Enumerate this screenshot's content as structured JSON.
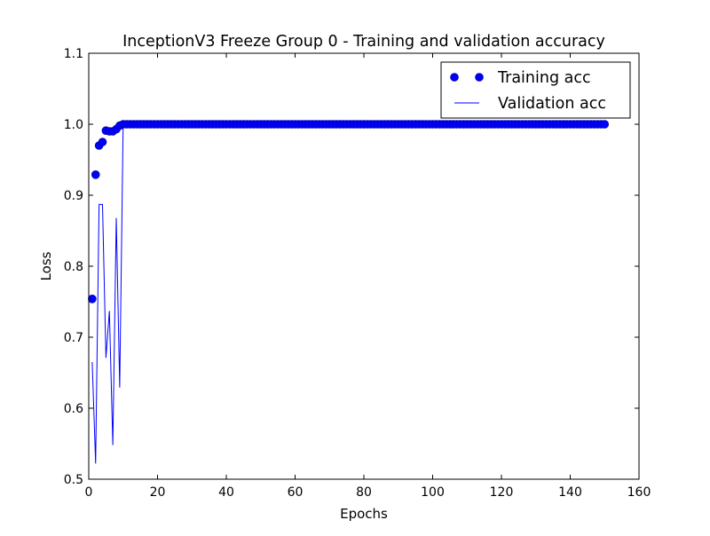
{
  "chart_data": {
    "type": "line",
    "title": "InceptionV3 Freeze Group 0 - Training and validation accuracy",
    "xlabel": "Epochs",
    "ylabel": "Loss",
    "xlim": [
      0,
      160
    ],
    "ylim": [
      0.5,
      1.1
    ],
    "xticks": [
      "0",
      "20",
      "40",
      "60",
      "80",
      "100",
      "120",
      "140",
      "160"
    ],
    "yticks": [
      "0.5",
      "0.6",
      "0.7",
      "0.8",
      "0.9",
      "1.0",
      "1.1"
    ],
    "grid": false,
    "legend_position": "top-right",
    "colors": {
      "series": "#0000ff",
      "marker": "#0000bf",
      "axis": "#000000"
    },
    "series": [
      {
        "name": "Training acc",
        "style": "markers",
        "x": [
          1,
          2,
          3,
          4,
          5,
          6,
          7,
          8,
          9,
          10,
          11,
          12,
          13,
          14,
          15,
          16,
          17,
          18,
          19,
          20,
          21,
          22,
          23,
          24,
          25,
          26,
          27,
          28,
          29,
          30,
          31,
          32,
          33,
          34,
          35,
          36,
          37,
          38,
          39,
          40,
          41,
          42,
          43,
          44,
          45,
          46,
          47,
          48,
          49,
          50,
          51,
          52,
          53,
          54,
          55,
          56,
          57,
          58,
          59,
          60,
          61,
          62,
          63,
          64,
          65,
          66,
          67,
          68,
          69,
          70,
          71,
          72,
          73,
          74,
          75,
          76,
          77,
          78,
          79,
          80,
          81,
          82,
          83,
          84,
          85,
          86,
          87,
          88,
          89,
          90,
          91,
          92,
          93,
          94,
          95,
          96,
          97,
          98,
          99,
          100,
          101,
          102,
          103,
          104,
          105,
          106,
          107,
          108,
          109,
          110,
          111,
          112,
          113,
          114,
          115,
          116,
          117,
          118,
          119,
          120,
          121,
          122,
          123,
          124,
          125,
          126,
          127,
          128,
          129,
          130,
          131,
          132,
          133,
          134,
          135,
          136,
          137,
          138,
          139,
          140,
          141,
          142,
          143,
          144,
          145,
          146,
          147,
          148,
          149,
          150
        ],
        "y": [
          0.754,
          0.929,
          0.97,
          0.975,
          0.991,
          0.99,
          0.99,
          0.993,
          0.998,
          1.0,
          1.0,
          1.0,
          1.0,
          1.0,
          1.0,
          1.0,
          1.0,
          1.0,
          1.0,
          1.0,
          1.0,
          1.0,
          1.0,
          1.0,
          1.0,
          1.0,
          1.0,
          1.0,
          1.0,
          1.0,
          1.0,
          1.0,
          1.0,
          1.0,
          1.0,
          1.0,
          1.0,
          1.0,
          1.0,
          1.0,
          1.0,
          1.0,
          1.0,
          1.0,
          1.0,
          1.0,
          1.0,
          1.0,
          1.0,
          1.0,
          1.0,
          1.0,
          1.0,
          1.0,
          1.0,
          1.0,
          1.0,
          1.0,
          1.0,
          1.0,
          1.0,
          1.0,
          1.0,
          1.0,
          1.0,
          1.0,
          1.0,
          1.0,
          1.0,
          1.0,
          1.0,
          1.0,
          1.0,
          1.0,
          1.0,
          1.0,
          1.0,
          1.0,
          1.0,
          1.0,
          1.0,
          1.0,
          1.0,
          1.0,
          1.0,
          1.0,
          1.0,
          1.0,
          1.0,
          1.0,
          1.0,
          1.0,
          1.0,
          1.0,
          1.0,
          1.0,
          1.0,
          1.0,
          1.0,
          1.0,
          1.0,
          1.0,
          1.0,
          1.0,
          1.0,
          1.0,
          1.0,
          1.0,
          1.0,
          1.0,
          1.0,
          1.0,
          1.0,
          1.0,
          1.0,
          1.0,
          1.0,
          1.0,
          1.0,
          1.0,
          1.0,
          1.0,
          1.0,
          1.0,
          1.0,
          1.0,
          1.0,
          1.0,
          1.0,
          1.0,
          1.0,
          1.0,
          1.0,
          1.0,
          1.0,
          1.0,
          1.0,
          1.0,
          1.0,
          1.0,
          1.0,
          1.0,
          1.0,
          1.0,
          1.0,
          1.0,
          1.0,
          1.0,
          1.0,
          1.0
        ]
      },
      {
        "name": "Validation acc",
        "style": "line",
        "x": [
          1,
          2,
          3,
          4,
          5,
          6,
          7,
          8,
          9,
          10,
          11,
          12,
          13,
          14,
          15,
          16,
          17,
          18,
          19,
          20,
          21,
          22,
          23,
          24,
          25,
          26,
          27,
          28,
          29,
          30,
          31,
          32,
          33,
          34,
          35,
          36,
          37,
          38,
          39,
          40,
          41,
          42,
          43,
          44,
          45,
          46,
          47,
          48,
          49,
          50,
          51,
          52,
          53,
          54,
          55,
          56,
          57,
          58,
          59,
          60,
          61,
          62,
          63,
          64,
          65,
          66,
          67,
          68,
          69,
          70,
          71,
          72,
          73,
          74,
          75,
          76,
          77,
          78,
          79,
          80,
          81,
          82,
          83,
          84,
          85,
          86,
          87,
          88,
          89,
          90,
          91,
          92,
          93,
          94,
          95,
          96,
          97,
          98,
          99,
          100,
          101,
          102,
          103,
          104,
          105,
          106,
          107,
          108,
          109,
          110,
          111,
          112,
          113,
          114,
          115,
          116,
          117,
          118,
          119,
          120,
          121,
          122,
          123,
          124,
          125,
          126,
          127,
          128,
          129,
          130,
          131,
          132,
          133,
          134,
          135,
          136,
          137,
          138,
          139,
          140,
          141,
          142,
          143,
          144,
          145,
          146,
          147,
          148,
          149,
          150
        ],
        "y": [
          0.665,
          0.522,
          0.887,
          0.887,
          0.671,
          0.737,
          0.548,
          0.868,
          0.629,
          1.0,
          1.0,
          1.0,
          1.0,
          1.0,
          1.0,
          1.0,
          1.0,
          1.0,
          1.0,
          1.0,
          1.0,
          1.0,
          1.0,
          1.0,
          1.0,
          1.0,
          1.0,
          1.0,
          1.0,
          1.0,
          1.0,
          1.0,
          1.0,
          1.0,
          1.0,
          1.0,
          1.0,
          1.0,
          1.0,
          1.0,
          1.0,
          1.0,
          1.0,
          1.0,
          1.0,
          1.0,
          1.0,
          1.0,
          1.0,
          1.0,
          1.0,
          1.0,
          1.0,
          1.0,
          1.0,
          1.0,
          1.0,
          1.0,
          1.0,
          1.0,
          1.0,
          1.0,
          1.0,
          1.0,
          1.0,
          1.0,
          1.0,
          1.0,
          1.0,
          1.0,
          1.0,
          1.0,
          1.0,
          1.0,
          1.0,
          1.0,
          1.0,
          1.0,
          1.0,
          1.0,
          1.0,
          1.0,
          1.0,
          1.0,
          1.0,
          1.0,
          1.0,
          1.0,
          1.0,
          1.0,
          1.0,
          1.0,
          1.0,
          1.0,
          1.0,
          1.0,
          1.0,
          1.0,
          1.0,
          1.0,
          1.0,
          1.0,
          1.0,
          1.0,
          1.0,
          1.0,
          1.0,
          1.0,
          1.0,
          1.0,
          1.0,
          1.0,
          1.0,
          1.0,
          1.0,
          1.0,
          1.0,
          1.0,
          1.0,
          1.0,
          1.0,
          1.0,
          1.0,
          1.0,
          1.0,
          1.0,
          1.0,
          1.0,
          1.0,
          1.0,
          1.0,
          1.0,
          1.0,
          1.0,
          1.0,
          1.0,
          1.0,
          1.0,
          1.0,
          1.0,
          1.0,
          1.0,
          1.0,
          1.0,
          1.0,
          1.0,
          1.0,
          1.0,
          1.0,
          1.0
        ]
      }
    ]
  }
}
